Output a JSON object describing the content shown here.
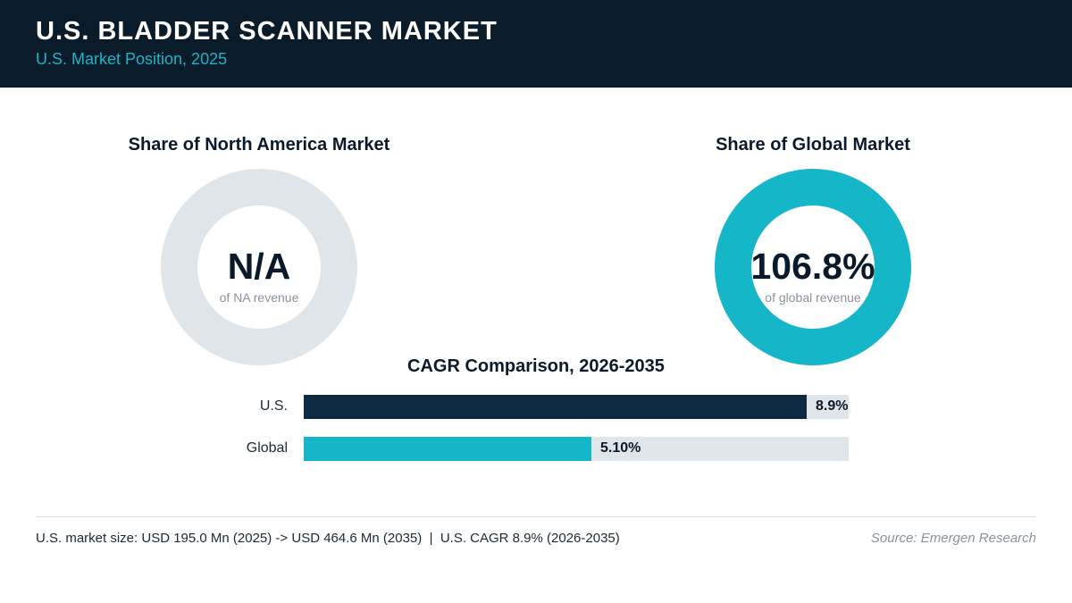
{
  "header": {
    "title": "U.S. BLADDER SCANNER MARKET",
    "subtitle": "U.S. Market Position, 2025"
  },
  "colors": {
    "navy": "#0d2a42",
    "teal": "#16b6c9",
    "track": "#e0e5ea"
  },
  "chart_data": [
    {
      "type": "pie",
      "title": "Share of North America Market",
      "center_value": "N/A",
      "center_caption": "of NA revenue",
      "value": null
    },
    {
      "type": "pie",
      "title": "Share of Global Market",
      "center_value": "106.8%",
      "center_caption": "of global revenue",
      "value": 106.8
    },
    {
      "type": "bar",
      "orientation": "horizontal",
      "title": "CAGR Comparison, 2026-2035",
      "categories": [
        "U.S.",
        "Global"
      ],
      "values": [
        8.9,
        5.1
      ],
      "value_labels": [
        "8.9%",
        "5.10%"
      ],
      "xlim": [
        0,
        9.65
      ]
    }
  ],
  "footer": {
    "summary": "U.S. market size: USD 195.0 Mn (2025) -> USD 464.6 Mn (2035)  |  U.S. CAGR 8.9% (2026-2035)",
    "source": "Source: Emergen Research"
  }
}
